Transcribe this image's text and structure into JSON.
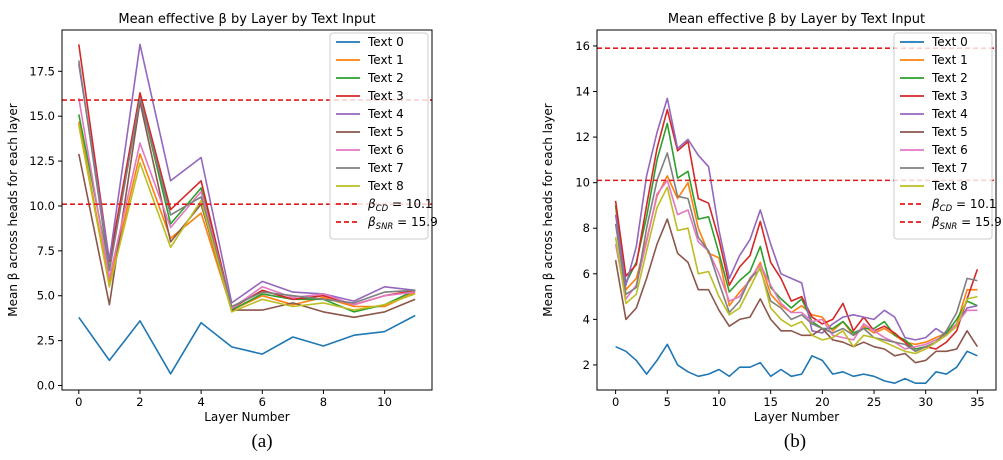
{
  "chart_data": [
    {
      "type": "line",
      "title": "Mean effective β by Layer by Text Input",
      "xlabel": "Layer Number",
      "ylabel": "Mean β across heads for each layer",
      "x": [
        0,
        1,
        2,
        3,
        4,
        5,
        6,
        7,
        8,
        9,
        10,
        11
      ],
      "xlim": [
        -0.55,
        11.55
      ],
      "ylim": [
        -0.25,
        19.8
      ],
      "xticks": [
        "0",
        "2",
        "4",
        "6",
        "8",
        "10"
      ],
      "yticks": [
        "0.0",
        "2.5",
        "5.0",
        "7.5",
        "10.0",
        "12.5",
        "15.0",
        "17.5"
      ],
      "series": [
        {
          "name": "Text 0",
          "color": "#1f77b4",
          "values": [
            3.8,
            1.4,
            3.6,
            0.65,
            3.5,
            2.15,
            1.75,
            2.7,
            2.2,
            2.8,
            3.0,
            3.9
          ]
        },
        {
          "name": "Text 1",
          "color": "#ff7f0e",
          "values": [
            14.7,
            5.7,
            12.9,
            8.2,
            9.6,
            4.2,
            5.0,
            4.5,
            4.9,
            4.4,
            4.4,
            5.2
          ]
        },
        {
          "name": "Text 2",
          "color": "#2ca02c",
          "values": [
            15.1,
            6.5,
            16.1,
            9.0,
            11.0,
            4.2,
            5.1,
            4.8,
            4.8,
            4.1,
            4.5,
            5.3
          ]
        },
        {
          "name": "Text 3",
          "color": "#d62728",
          "values": [
            19.0,
            6.9,
            16.3,
            9.8,
            11.4,
            4.3,
            5.3,
            4.8,
            5.0,
            4.5,
            5.0,
            5.3
          ]
        },
        {
          "name": "Text 4",
          "color": "#9467bd",
          "values": [
            17.9,
            7.0,
            19.0,
            11.4,
            12.7,
            4.6,
            5.8,
            5.2,
            5.1,
            4.7,
            5.5,
            5.3
          ]
        },
        {
          "name": "Text 5",
          "color": "#8c564b",
          "values": [
            12.9,
            4.5,
            15.8,
            8.0,
            10.1,
            4.2,
            4.2,
            4.6,
            4.1,
            3.8,
            4.1,
            4.8
          ]
        },
        {
          "name": "Text 6",
          "color": "#e377c2",
          "values": [
            16.0,
            6.0,
            13.5,
            8.8,
            10.8,
            4.3,
            5.5,
            4.9,
            5.1,
            4.5,
            5.0,
            5.2
          ]
        },
        {
          "name": "Text 7",
          "color": "#7f7f7f",
          "values": [
            18.1,
            6.4,
            16.0,
            9.5,
            10.5,
            4.4,
            5.2,
            5.0,
            4.8,
            4.6,
            5.2,
            5.3
          ]
        },
        {
          "name": "Text 8",
          "color": "#bcbd22",
          "values": [
            14.5,
            5.5,
            12.4,
            7.7,
            10.3,
            4.1,
            4.8,
            4.4,
            4.6,
            4.2,
            4.5,
            5.1
          ]
        }
      ],
      "hlines": [
        {
          "label": "β_CD = 10.1",
          "label_sym": "β",
          "label_sub": "CD",
          "label_rest": " = 10.1",
          "y": 10.1,
          "color": "#e31a1c"
        },
        {
          "label": "β_SNR = 15.9",
          "label_sym": "β",
          "label_sub": "SNR",
          "label_rest": " = 15.9",
          "y": 15.9,
          "color": "#e31a1c"
        }
      ],
      "legend": "top-right",
      "grid": false,
      "caption": "(a)"
    },
    {
      "type": "line",
      "title": "Mean effective β by Layer by Text Input",
      "xlabel": "Layer Number",
      "ylabel": "Mean β across heads for each layer",
      "x": [
        0,
        1,
        2,
        3,
        4,
        5,
        6,
        7,
        8,
        9,
        10,
        11,
        12,
        13,
        14,
        15,
        16,
        17,
        18,
        19,
        20,
        21,
        22,
        23,
        24,
        25,
        26,
        27,
        28,
        29,
        30,
        31,
        32,
        33,
        34,
        35
      ],
      "xlim": [
        -1.8,
        36.8
      ],
      "ylim": [
        0.9,
        16.7
      ],
      "xticks": [
        "0",
        "5",
        "10",
        "15",
        "20",
        "25",
        "30",
        "35"
      ],
      "yticks": [
        "2",
        "4",
        "6",
        "8",
        "10",
        "12",
        "14",
        "16"
      ],
      "series": [
        {
          "name": "Text 0",
          "color": "#1f77b4",
          "values": [
            2.8,
            2.6,
            2.2,
            1.6,
            2.2,
            2.9,
            2.0,
            1.7,
            1.5,
            1.6,
            1.8,
            1.5,
            1.9,
            1.9,
            2.1,
            1.5,
            1.8,
            1.5,
            1.6,
            2.4,
            2.2,
            1.6,
            1.7,
            1.5,
            1.6,
            1.5,
            1.3,
            1.2,
            1.4,
            1.2,
            1.2,
            1.7,
            1.6,
            1.9,
            2.6,
            2.4
          ]
        },
        {
          "name": "Text 1",
          "color": "#ff7f0e",
          "values": [
            9.0,
            5.3,
            5.8,
            7.5,
            9.4,
            10.3,
            9.3,
            10.0,
            8.0,
            6.9,
            6.7,
            4.6,
            5.2,
            5.7,
            6.5,
            5.1,
            4.6,
            4.3,
            4.6,
            4.2,
            4.1,
            3.5,
            3.9,
            3.3,
            3.7,
            3.4,
            3.6,
            3.3,
            3.0,
            2.9,
            3.0,
            3.2,
            3.4,
            3.8,
            5.3,
            5.3
          ]
        },
        {
          "name": "Text 2",
          "color": "#2ca02c",
          "values": [
            9.0,
            5.6,
            6.5,
            8.5,
            11.0,
            12.6,
            10.2,
            10.5,
            8.4,
            8.5,
            6.9,
            5.2,
            5.7,
            6.1,
            7.2,
            5.4,
            4.9,
            4.5,
            4.9,
            3.9,
            3.6,
            3.6,
            3.9,
            3.4,
            3.6,
            3.6,
            3.9,
            3.3,
            3.1,
            2.7,
            2.8,
            3.0,
            3.4,
            4.0,
            4.8,
            4.6
          ]
        },
        {
          "name": "Text 3",
          "color": "#d62728",
          "values": [
            9.2,
            5.9,
            6.4,
            9.0,
            11.5,
            13.2,
            11.4,
            11.8,
            9.3,
            9.1,
            7.5,
            5.5,
            6.3,
            6.8,
            8.3,
            6.5,
            5.8,
            4.8,
            5.0,
            4.1,
            3.8,
            4.0,
            4.7,
            3.5,
            4.1,
            3.5,
            3.7,
            3.4,
            3.0,
            2.6,
            2.8,
            2.7,
            3.0,
            3.5,
            4.9,
            6.2
          ]
        },
        {
          "name": "Text 4",
          "color": "#9467bd",
          "values": [
            8.6,
            5.5,
            7.2,
            10.3,
            12.2,
            13.7,
            11.5,
            11.9,
            11.2,
            10.7,
            7.9,
            5.8,
            6.8,
            7.5,
            8.8,
            7.3,
            6.0,
            5.8,
            5.6,
            3.5,
            3.4,
            3.8,
            4.1,
            4.2,
            4.1,
            4.0,
            4.4,
            4.1,
            3.2,
            3.1,
            3.2,
            3.6,
            3.3,
            3.8,
            4.5,
            4.6
          ]
        },
        {
          "name": "Text 5",
          "color": "#8c564b",
          "values": [
            6.6,
            4.0,
            4.5,
            5.8,
            7.3,
            8.4,
            6.9,
            6.5,
            5.3,
            5.3,
            4.4,
            3.7,
            4.0,
            4.1,
            4.9,
            4.0,
            3.5,
            3.5,
            3.3,
            3.3,
            3.6,
            3.1,
            3.0,
            2.8,
            3.0,
            2.8,
            2.7,
            2.4,
            2.5,
            2.1,
            2.2,
            2.6,
            2.6,
            2.7,
            3.5,
            2.8
          ]
        },
        {
          "name": "Text 6",
          "color": "#e377c2",
          "values": [
            7.3,
            4.9,
            5.5,
            7.4,
            9.5,
            10.1,
            8.6,
            8.8,
            7.4,
            7.0,
            6.0,
            4.8,
            5.0,
            5.8,
            6.4,
            5.5,
            4.7,
            4.3,
            4.3,
            3.9,
            4.0,
            3.3,
            3.2,
            3.1,
            3.8,
            3.5,
            3.2,
            3.0,
            2.7,
            2.8,
            2.9,
            3.1,
            3.3,
            3.8,
            4.4,
            4.4
          ]
        },
        {
          "name": "Text 7",
          "color": "#7f7f7f",
          "values": [
            8.2,
            5.1,
            5.4,
            8.0,
            10.1,
            11.3,
            9.4,
            9.3,
            7.6,
            7.0,
            5.6,
            4.3,
            4.8,
            5.8,
            6.2,
            4.8,
            4.5,
            4.0,
            4.2,
            3.8,
            3.6,
            3.4,
            3.6,
            3.3,
            3.6,
            3.2,
            3.1,
            3.0,
            2.9,
            2.6,
            2.8,
            3.0,
            3.5,
            4.3,
            5.8,
            5.7
          ]
        },
        {
          "name": "Text 8",
          "color": "#bcbd22",
          "values": [
            7.6,
            4.7,
            5.1,
            7.0,
            8.9,
            9.8,
            7.9,
            8.0,
            6.0,
            6.1,
            5.0,
            4.2,
            4.5,
            5.4,
            6.3,
            4.5,
            4.0,
            3.7,
            3.9,
            3.3,
            3.1,
            3.2,
            3.5,
            2.8,
            3.3,
            3.2,
            3.0,
            2.8,
            2.6,
            2.5,
            2.7,
            3.0,
            3.3,
            3.7,
            4.9,
            5.0
          ]
        }
      ],
      "hlines": [
        {
          "label": "β_CD = 10.1",
          "label_sym": "β",
          "label_sub": "CD",
          "label_rest": " = 10.1",
          "y": 10.1,
          "color": "#e31a1c"
        },
        {
          "label": "β_SNR = 15.9",
          "label_sym": "β",
          "label_sub": "SNR",
          "label_rest": " = 15.9",
          "y": 15.9,
          "color": "#e31a1c"
        }
      ],
      "legend": "top-right",
      "grid": false,
      "caption": "(b)"
    }
  ]
}
